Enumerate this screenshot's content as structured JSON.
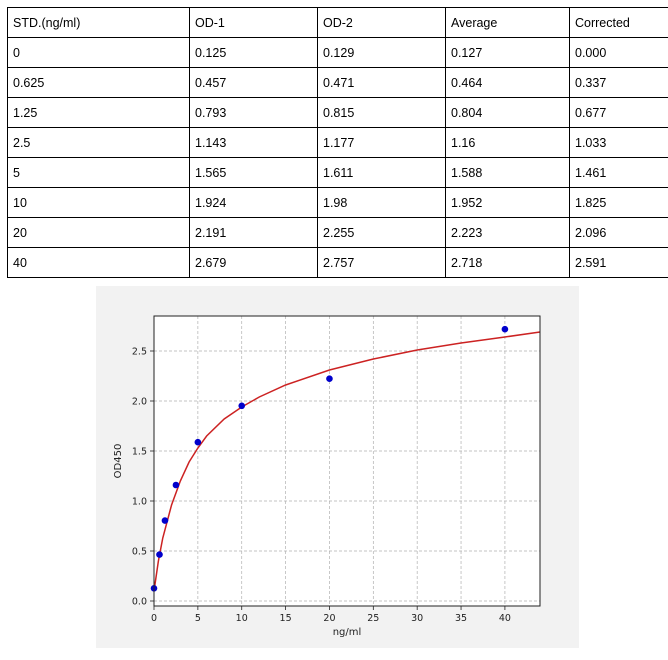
{
  "table": {
    "headers": [
      "STD.(ng/ml)",
      "OD-1",
      "OD-2",
      "Average",
      "Corrected"
    ],
    "rows": [
      [
        "0",
        "0.125",
        "0.129",
        "0.127",
        "0.000"
      ],
      [
        "0.625",
        "0.457",
        "0.471",
        "0.464",
        "0.337"
      ],
      [
        "1.25",
        "0.793",
        "0.815",
        "0.804",
        "0.677"
      ],
      [
        "2.5",
        "1.143",
        "1.177",
        "1.16",
        "1.033"
      ],
      [
        "5",
        "1.565",
        "1.611",
        "1.588",
        "1.461"
      ],
      [
        "10",
        "1.924",
        "1.98",
        "1.952",
        "1.825"
      ],
      [
        "20",
        "2.191",
        "2.255",
        "2.223",
        "2.096"
      ],
      [
        "40",
        "2.679",
        "2.757",
        "2.718",
        "2.591"
      ]
    ]
  },
  "chart_data": {
    "type": "scatter",
    "title": "",
    "xlabel": "ng/ml",
    "ylabel": "OD450",
    "xlim": [
      0,
      44
    ],
    "ylim": [
      -0.05,
      2.85
    ],
    "x_ticks": [
      "0",
      "5",
      "10",
      "15",
      "20",
      "25",
      "30",
      "35",
      "40"
    ],
    "y_ticks": [
      "0.0",
      "0.5",
      "1.0",
      "1.5",
      "2.0",
      "2.5"
    ],
    "grid": true,
    "legend": false,
    "series": [
      {
        "kind": "points",
        "color": "#0000cc",
        "x": [
          0,
          0.625,
          1.25,
          2.5,
          5,
          10,
          20,
          40
        ],
        "y": [
          0.127,
          0.464,
          0.804,
          1.16,
          1.588,
          1.952,
          2.223,
          2.718
        ]
      },
      {
        "kind": "fitted-curve",
        "color": "#cc2222",
        "x": [
          0,
          0.5,
          1,
          2,
          3,
          4,
          5,
          6,
          8,
          10,
          12,
          15,
          20,
          25,
          30,
          35,
          40,
          44
        ],
        "y": [
          0.1,
          0.4,
          0.63,
          0.96,
          1.2,
          1.39,
          1.53,
          1.65,
          1.82,
          1.94,
          2.04,
          2.16,
          2.31,
          2.42,
          2.51,
          2.58,
          2.64,
          2.69
        ]
      }
    ]
  },
  "colors": {
    "panel_background": "#f2f2f2",
    "plot_background": "#ffffff",
    "grid": "#b0b0b0",
    "points": "#0000cc",
    "curve": "#cc2222"
  }
}
